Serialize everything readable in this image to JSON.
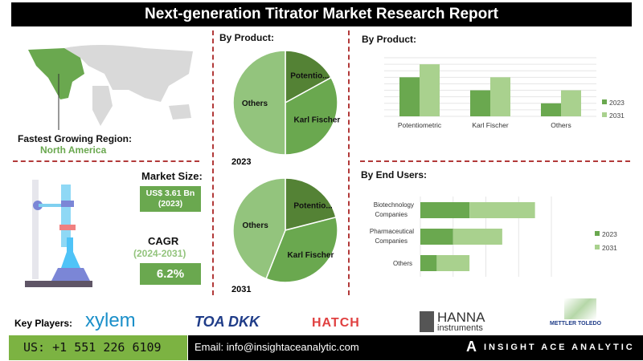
{
  "title": "Next-generation Titrator Market Research Report",
  "region": {
    "label": "Fastest Growing Region:",
    "value": "North America"
  },
  "market_size": {
    "label": "Market Size:",
    "value": "US$ 3.61 Bn",
    "year": "(2023)"
  },
  "cagr": {
    "label": "CAGR",
    "period": "(2024-2031)",
    "value": "6.2%"
  },
  "colors": {
    "dark": "#548235",
    "mid": "#6aa84f",
    "light": "#a9d18e",
    "pie_light": "#93c47d"
  },
  "chart_data": [
    {
      "type": "pie",
      "title": "By Product:",
      "label": "2023",
      "slices": [
        {
          "name": "Potentio...",
          "value": 17
        },
        {
          "name": "Karl Fischer",
          "value": 33
        },
        {
          "name": "Others",
          "value": 50
        }
      ]
    },
    {
      "type": "pie",
      "label": "2031",
      "slices": [
        {
          "name": "Potentio...",
          "value": 21
        },
        {
          "name": "Karl Fischer",
          "value": 35
        },
        {
          "name": "Others",
          "value": 44
        }
      ]
    },
    {
      "type": "bar",
      "title": "By Product:",
      "categories": [
        "Potentiometric",
        "Karl Fischer",
        "Others"
      ],
      "series": [
        {
          "name": "2023",
          "values": [
            6,
            4,
            2
          ]
        },
        {
          "name": "2031",
          "values": [
            8,
            6,
            4
          ]
        }
      ],
      "ylim": [
        0,
        9
      ],
      "grid": true,
      "legend": "right"
    },
    {
      "type": "bar",
      "orientation": "horizontal",
      "stacked": true,
      "title": "By End Users:",
      "categories": [
        "Biotechnology Companies",
        "Pharmaceutical Companies",
        "Others"
      ],
      "series": [
        {
          "name": "2023",
          "values": [
            1.5,
            1.0,
            0.5
          ]
        },
        {
          "name": "2031",
          "values": [
            2.0,
            1.5,
            1.0
          ]
        }
      ],
      "xlim": [
        0,
        4
      ],
      "grid": true,
      "legend": "right"
    }
  ],
  "footer": {
    "key_players_label": "Key Players:",
    "players": [
      "xylem",
      "TOA DKK",
      "HATCH",
      "HANNA instruments",
      "METTLER TOLEDO"
    ],
    "phone": "US: +1 551 226 6109",
    "email": "Email: info@insightaceanalytic.com",
    "brand": "INSIGHT ACE ANALYTIC"
  }
}
